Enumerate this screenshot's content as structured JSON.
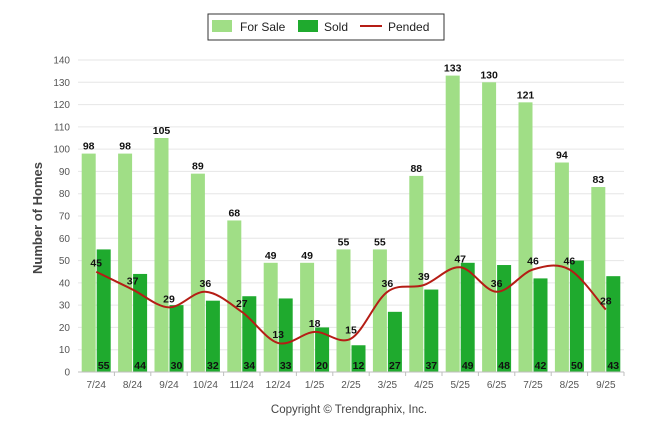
{
  "chart_data": {
    "type": "bar",
    "ylabel": "Number of Homes",
    "xlabel": "",
    "ylim": [
      0,
      140
    ],
    "ytick_step": 10,
    "categories": [
      "7/24",
      "8/24",
      "9/24",
      "10/24",
      "11/24",
      "12/24",
      "1/25",
      "2/25",
      "3/25",
      "4/25",
      "5/25",
      "6/25",
      "7/25",
      "8/25",
      "9/25"
    ],
    "series": [
      {
        "name": "For Sale",
        "kind": "bar",
        "color": "#a0de86",
        "values": [
          98,
          98,
          105,
          89,
          68,
          49,
          49,
          55,
          55,
          88,
          133,
          130,
          121,
          94,
          83
        ]
      },
      {
        "name": "Sold",
        "kind": "bar",
        "color": "#1faa2e",
        "values": [
          55,
          44,
          30,
          32,
          34,
          33,
          20,
          12,
          27,
          37,
          49,
          48,
          42,
          50,
          43
        ]
      },
      {
        "name": "Pended",
        "kind": "line",
        "color": "#b51d15",
        "values": [
          45,
          37,
          29,
          36,
          27,
          13,
          18,
          15,
          36,
          39,
          47,
          36,
          46,
          46,
          28
        ]
      }
    ],
    "legend": [
      "For Sale",
      "Sold",
      "Pended"
    ],
    "grid": true,
    "credit": "Copyright © Trendgraphix, Inc."
  }
}
